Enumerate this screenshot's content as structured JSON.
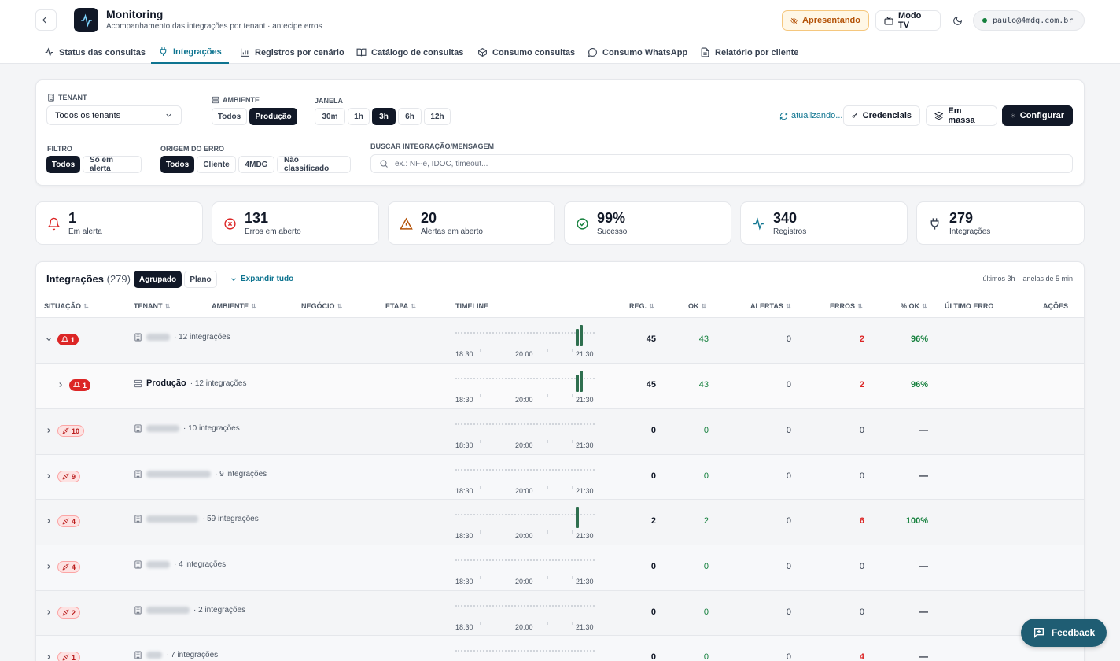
{
  "app": {
    "title": "Monitoring",
    "subtitle": "Acompanhamento das integrações por tenant · antecipe erros"
  },
  "header": {
    "presenting_label": "Apresentando",
    "tv_label": "Modo TV",
    "user_email": "paulo@4mdg.com.br"
  },
  "nav": {
    "tabs": [
      {
        "label": "Status das consultas",
        "icon": "activity-icon",
        "active": false
      },
      {
        "label": "Integrações",
        "icon": "plug-icon",
        "active": true
      },
      {
        "label": "Registros por cenário",
        "icon": "bar-chart-icon",
        "active": false
      },
      {
        "label": "Catálogo de consultas",
        "icon": "book-icon",
        "active": false
      },
      {
        "label": "Consumo consultas",
        "icon": "box-icon",
        "active": false
      },
      {
        "label": "Consumo WhatsApp",
        "icon": "chat-icon",
        "active": false
      },
      {
        "label": "Relatório por cliente",
        "icon": "file-icon",
        "active": false
      }
    ]
  },
  "filters": {
    "tenant": {
      "label": "Tenant",
      "value": "Todos os tenants"
    },
    "ambiente": {
      "label": "Ambiente",
      "options": [
        "Todos",
        "Produção"
      ],
      "selected": "Produção"
    },
    "janela": {
      "label": "Janela",
      "options": [
        "30m",
        "1h",
        "3h",
        "6h",
        "12h"
      ],
      "selected": "3h"
    },
    "filtro": {
      "label": "Filtro",
      "options": [
        "Todos",
        "Só em alerta"
      ],
      "selected": "Todos"
    },
    "origem": {
      "label": "Origem do erro",
      "options": [
        "Todos",
        "Cliente",
        "4MDG",
        "Não classificado"
      ],
      "selected": "Todos"
    },
    "busca": {
      "label": "Buscar integração/mensagem",
      "placeholder": "ex.: NF-e, IDOC, timeout..."
    },
    "status": "atualizando...",
    "actions": {
      "credenciais": "Credenciais",
      "em_massa": "Em massa",
      "configurar": "Configurar"
    }
  },
  "kpis": [
    {
      "value": "1",
      "label": "Em alerta",
      "icon": "bell-icon",
      "color": "#dc2626"
    },
    {
      "value": "131",
      "label": "Erros em aberto",
      "icon": "x-circle-icon",
      "color": "#dc2626"
    },
    {
      "value": "20",
      "label": "Alertas em aberto",
      "icon": "warning-icon",
      "color": "#b45309"
    },
    {
      "value": "99%",
      "label": "Sucesso",
      "icon": "check-circle-icon",
      "color": "#15803d"
    },
    {
      "value": "340",
      "label": "Registros",
      "icon": "activity-icon",
      "color": "#0e7490"
    },
    {
      "value": "279",
      "label": "Integrações",
      "icon": "plug-icon",
      "color": "#374151"
    }
  ],
  "table": {
    "title": "Integrações",
    "count": "(279)",
    "modes": [
      "Agrupado",
      "Plano"
    ],
    "selected_mode": "Agrupado",
    "expand_label": "Expandir tudo",
    "window_info": "últimos 3h · janelas de 5 min",
    "columns": [
      "Situação",
      "Tenant",
      "Ambiente",
      "Negócio",
      "Etapa",
      "Timeline",
      "Reg.",
      "OK",
      "Alertas",
      "Erros",
      "% OK",
      "Último erro",
      "Ações"
    ],
    "timeline_labels": [
      "18:30",
      "20:00",
      "21:30"
    ],
    "rows": [
      {
        "badge": "1",
        "badge_style": "red",
        "badge_icon": "bell-icon",
        "level": 0,
        "name_blurred": true,
        "name": "",
        "suffix": "· 12 integrações",
        "reg": "45",
        "ok": "43",
        "alertas": "0",
        "erros": "2",
        "pct": "96%",
        "timeline": [
          0.8,
          1.0
        ],
        "tenant_icon": "building-icon"
      },
      {
        "badge": "1",
        "badge_style": "red",
        "badge_icon": "bell-icon",
        "level": 1,
        "name_blurred": false,
        "name": "Produção",
        "suffix": "· 12 integrações",
        "reg": "45",
        "ok": "43",
        "alertas": "0",
        "erros": "2",
        "pct": "96%",
        "timeline": [
          0.8,
          1.0
        ],
        "tenant_icon": "server-icon"
      },
      {
        "badge": "10",
        "badge_style": "pink",
        "badge_icon": "unplug-icon",
        "level": 0,
        "name_blurred": true,
        "name": "",
        "suffix": "· 10 integrações",
        "reg": "0",
        "ok": "0",
        "alertas": "0",
        "erros": "0",
        "pct": "—",
        "timeline": [],
        "tenant_icon": "building-icon"
      },
      {
        "badge": "9",
        "badge_style": "pink",
        "badge_icon": "unplug-icon",
        "level": 0,
        "name_blurred": true,
        "name": "",
        "suffix": "· 9 integrações",
        "reg": "0",
        "ok": "0",
        "alertas": "0",
        "erros": "0",
        "pct": "—",
        "timeline": [],
        "tenant_icon": "building-icon"
      },
      {
        "badge": "4",
        "badge_style": "pink",
        "badge_icon": "unplug-icon",
        "level": 0,
        "name_blurred": true,
        "name": "",
        "suffix": "· 59 integrações",
        "reg": "2",
        "ok": "2",
        "alertas": "0",
        "erros": "6",
        "pct": "100%",
        "timeline": [
          1.0
        ],
        "tenant_icon": "building-icon"
      },
      {
        "badge": "4",
        "badge_style": "pink",
        "badge_icon": "unplug-icon",
        "level": 0,
        "name_blurred": true,
        "name": "",
        "suffix": "· 4 integrações",
        "reg": "0",
        "ok": "0",
        "alertas": "0",
        "erros": "0",
        "pct": "—",
        "timeline": [],
        "tenant_icon": "building-icon"
      },
      {
        "badge": "2",
        "badge_style": "pink",
        "badge_icon": "unplug-icon",
        "level": 0,
        "name_blurred": true,
        "name": "",
        "suffix": "· 2 integrações",
        "reg": "0",
        "ok": "0",
        "alertas": "0",
        "erros": "0",
        "pct": "—",
        "timeline": [],
        "tenant_icon": "building-icon"
      },
      {
        "badge": "1",
        "badge_style": "pink",
        "badge_icon": "unplug-icon",
        "level": 0,
        "name_blurred": true,
        "name": "",
        "suffix": "· 7 integrações",
        "reg": "0",
        "ok": "0",
        "alertas": "0",
        "erros": "4",
        "pct": "—",
        "timeline": [],
        "tenant_icon": "building-icon"
      }
    ]
  },
  "feedback_label": "Feedback",
  "colors": {
    "accent": "#0e7490",
    "dark": "#111827",
    "error": "#dc2626",
    "ok": "#15803d",
    "bar": "#2f6f4f",
    "feedback": "#1f5d73"
  }
}
